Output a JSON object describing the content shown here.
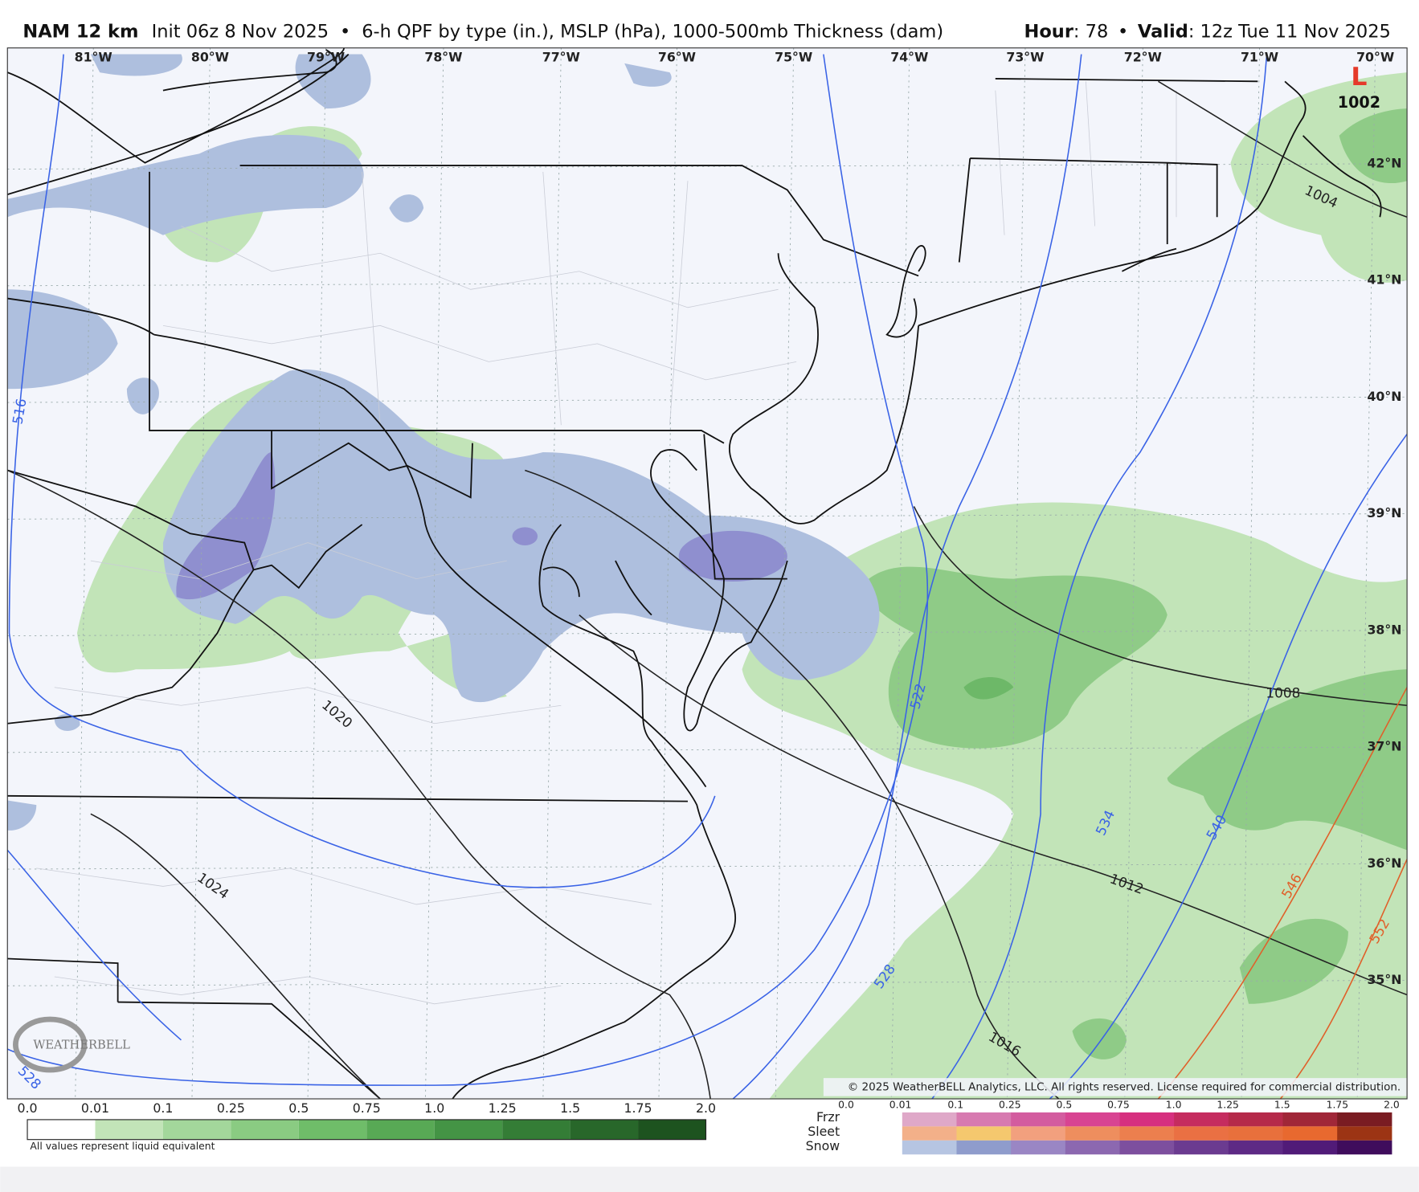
{
  "header": {
    "model": "NAM 12 km",
    "init": "Init 06z 8 Nov 2025",
    "separator": "•",
    "product": "6-h QPF by type (in.), MSLP (hPa), 1000-500mb Thickness (dam)",
    "hour_label": "Hour",
    "hour_value": ": 78",
    "valid_label": "Valid",
    "valid_value": ": 12z Tue 11 Nov 2025"
  },
  "map": {
    "longitudes": [
      "81°W",
      "80°W",
      "79°W",
      "78°W",
      "77°W",
      "76°W",
      "75°W",
      "74°W",
      "73°W",
      "72°W",
      "71°W",
      "70°W"
    ],
    "latitudes": [
      "42°N",
      "41°N",
      "40°N",
      "39°N",
      "38°N",
      "37°N",
      "36°N",
      "35°N"
    ],
    "low": {
      "symbol": "L",
      "pressure": "1002"
    },
    "isobar_labels": [
      "1020",
      "1024",
      "1016",
      "1012",
      "1008",
      "1004"
    ],
    "thickness_labels": [
      "516",
      "522",
      "528",
      "534",
      "540",
      "546",
      "552",
      "528"
    ],
    "logo": "WEATHERBELL",
    "copyright": "© 2025 WeatherBELL Analytics, LLC. All rights reserved. License required for commercial distribution."
  },
  "legend": {
    "rain_ticks": [
      "0.0",
      "0.01",
      "0.1",
      "0.25",
      "0.5",
      "0.75",
      "1.0",
      "1.25",
      "1.5",
      "1.75",
      "2.0"
    ],
    "note": "All values represent liquid equivalent",
    "mixed_ticks": [
      "0.0",
      "0.01",
      "0.1",
      "0.25",
      "0.5",
      "0.75",
      "1.0",
      "1.25",
      "1.5",
      "1.75",
      "2.0"
    ],
    "types": [
      "Frzr",
      "Sleet",
      "Snow"
    ]
  }
}
